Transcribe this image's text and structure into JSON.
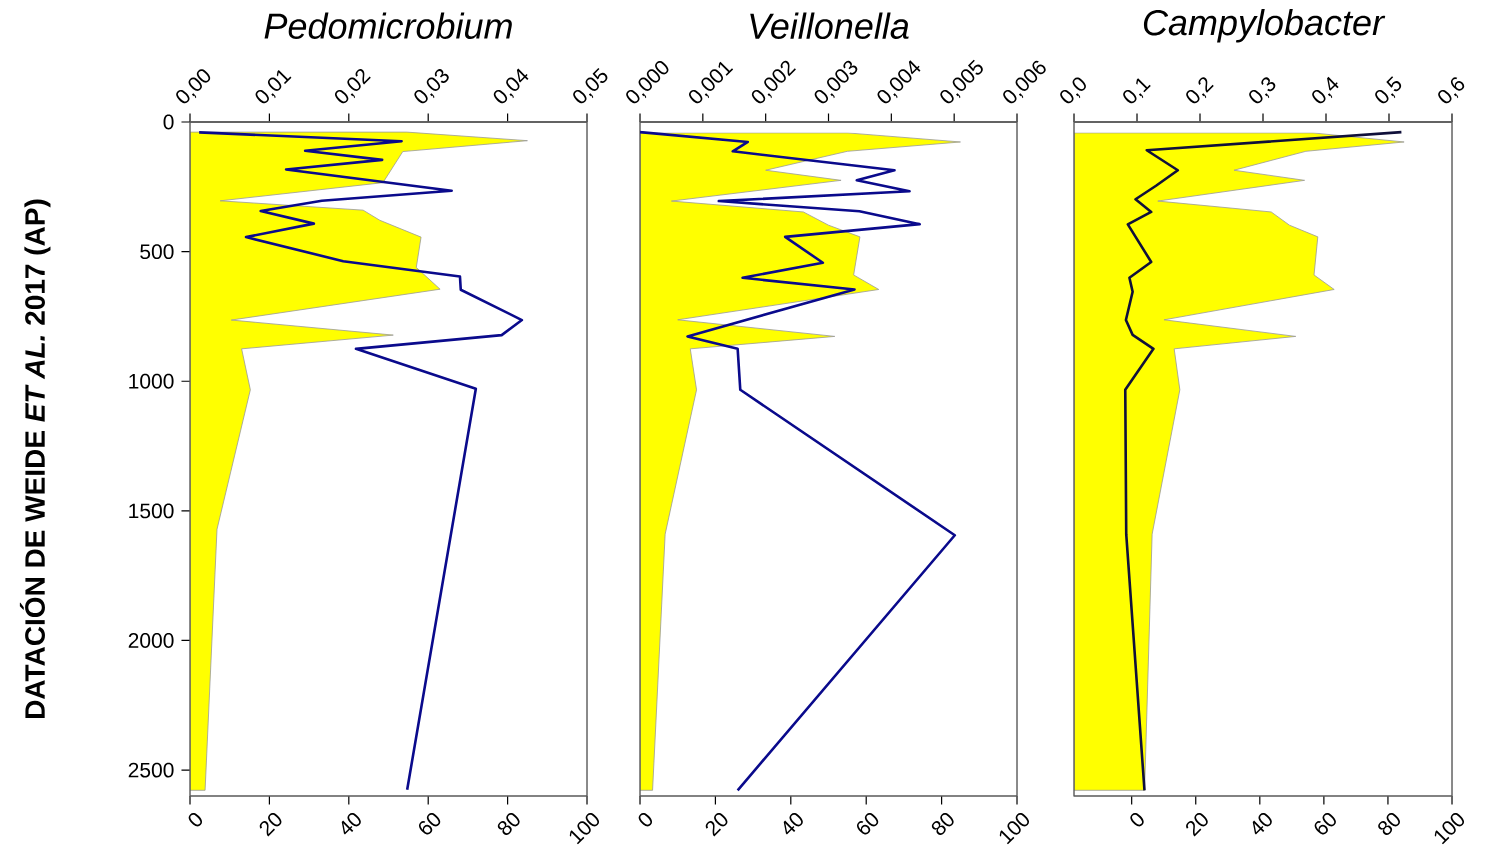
{
  "chart_data": [
    {
      "type": "area",
      "title": "Pedomicrobium",
      "ylabel": "DATACIÓN DE WEIDE *ET AL.* 2017  (AP)",
      "orientation": "horizontal",
      "ylim": [
        2600,
        0
      ],
      "yticks": [
        0,
        500,
        1000,
        1500,
        2000,
        2500
      ],
      "xlim": [
        0,
        100
      ],
      "xticks": [
        0,
        20,
        40,
        60,
        80,
        100
      ],
      "x2lim": [
        0,
        0.05
      ],
      "x2ticks": [
        {
          "value": 0,
          "label": "0,00"
        },
        {
          "value": 0.01,
          "label": "0,01"
        },
        {
          "value": 0.02,
          "label": "0,02"
        },
        {
          "value": 0.03,
          "label": "0,03"
        },
        {
          "value": 0.04,
          "label": "0,04"
        },
        {
          "value": 0.05,
          "label": "0,05"
        }
      ],
      "series": [
        {
          "axis": "x2",
          "color": "#ffff00",
          "x": [
            39,
            72,
            114,
            234,
            304,
            340,
            379,
            444,
            561,
            645,
            764,
            822,
            875,
            1033,
            1571,
            2578
          ],
          "values": [
            0.0273,
            0.0425,
            0.0268,
            0.0243,
            0.0038,
            0.0218,
            0.0239,
            0.0291,
            0.0285,
            0.0315,
            0.0052,
            0.0256,
            0.0065,
            0.0076,
            0.0034,
            0.0019
          ]
        },
        {
          "type": "line",
          "color": "#0a0a8c",
          "x": [
            40,
            74,
            111,
            146,
            183,
            265,
            304,
            343,
            392,
            444,
            537,
            596,
            647,
            764,
            822,
            875,
            1029,
            2576
          ],
          "values": [
            2.3,
            53.3,
            29.0,
            48.4,
            24.2,
            65.9,
            33.2,
            17.8,
            31.2,
            14.1,
            38.6,
            68.0,
            68.2,
            83.6,
            78.5,
            41.8,
            72.0,
            54.7
          ]
        }
      ]
    },
    {
      "type": "area",
      "title": "Veillonella",
      "orientation": "horizontal",
      "tick_labels": "x",
      "ylim": [
        2600,
        0
      ],
      "xlim": [
        0,
        100
      ],
      "xticks": [
        0,
        20,
        40,
        60,
        80,
        100
      ],
      "x2lim": [
        0,
        0.006
      ],
      "x2ticks": [
        {
          "value": 0,
          "label": "0,000"
        },
        {
          "value": 0.001,
          "label": "0,001"
        },
        {
          "value": 0.002,
          "label": "0,002"
        },
        {
          "value": 0.003,
          "label": "0,003"
        },
        {
          "value": 0.004,
          "label": "0,004"
        },
        {
          "value": 0.005,
          "label": "0,005"
        },
        {
          "value": 0.006,
          "label": "0,006"
        }
      ],
      "series": [
        {
          "axis": "x2",
          "color": "#ffff00",
          "x": [
            42,
            77,
            113,
            186,
            225,
            305,
            347,
            398,
            443,
            590,
            646,
            763,
            827,
            875,
            1033,
            1590,
            2578
          ],
          "values": [
            0.0033,
            0.0051,
            0.0033,
            0.002,
            0.0032,
            0.0005,
            0.0026,
            0.003,
            0.0035,
            0.0034,
            0.0038,
            0.0006,
            0.0031,
            0.0008,
            0.0009,
            0.0004,
            0.0002
          ]
        },
        {
          "type": "line",
          "color": "#0a0a8c",
          "x": [
            39,
            77,
            113,
            186,
            225,
            267,
            305,
            344,
            394,
            443,
            543,
            601,
            646,
            827,
            875,
            1033,
            1594,
            2578
          ],
          "values": [
            0,
            28.6,
            24.6,
            67.5,
            57.5,
            71.5,
            20.9,
            58.2,
            74.2,
            38.5,
            48.5,
            27.2,
            56.9,
            12.6,
            25.9,
            26.6,
            83.5,
            25.9
          ]
        }
      ]
    },
    {
      "type": "area",
      "title": "Campylobacter",
      "orientation": "horizontal",
      "tick_labels": "x",
      "ylim": [
        2600,
        0
      ],
      "xlim": [
        -18,
        100
      ],
      "xticks": [
        0,
        20,
        40,
        60,
        80,
        100
      ],
      "x2lim": [
        0,
        0.6
      ],
      "x2ticks": [
        {
          "value": 0,
          "label": "0,0"
        },
        {
          "value": 0.1,
          "label": "0,1"
        },
        {
          "value": 0.2,
          "label": "0,2"
        },
        {
          "value": 0.3,
          "label": "0,3"
        },
        {
          "value": 0.4,
          "label": "0,4"
        },
        {
          "value": 0.5,
          "label": "0,5"
        },
        {
          "value": 0.6,
          "label": "0,6"
        }
      ],
      "series": [
        {
          "axis": "x2",
          "color": "#ffff00",
          "x": [
            42,
            77,
            113,
            186,
            225,
            305,
            347,
            398,
            443,
            590,
            646,
            763,
            827,
            875,
            1033,
            1590,
            2578
          ],
          "values": [
            0.379,
            0.524,
            0.368,
            0.254,
            0.366,
            0.133,
            0.313,
            0.342,
            0.387,
            0.381,
            0.413,
            0.143,
            0.352,
            0.159,
            0.168,
            0.124,
            0.112
          ]
        },
        {
          "type": "line",
          "color": "#10103a",
          "x": [
            39,
            109,
            186,
            246,
            298,
            347,
            395,
            540,
            601,
            655,
            764,
            821,
            875,
            1033,
            1590,
            2578
          ],
          "values": [
            84.2,
            4.7,
            14.4,
            7.6,
            1.2,
            6.1,
            -1.2,
            6.1,
            -0.7,
            0.3,
            -1.8,
            0.3,
            6.8,
            -2.0,
            -1.7,
            4.0
          ]
        }
      ]
    }
  ]
}
